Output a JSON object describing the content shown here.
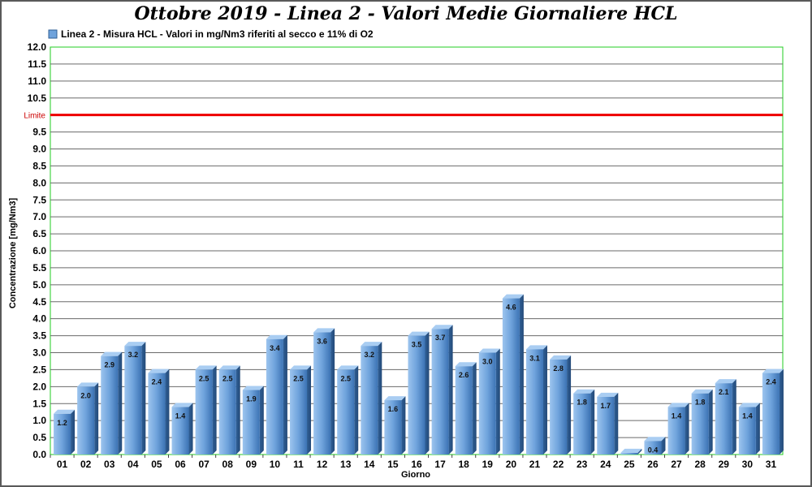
{
  "chart_data": {
    "type": "bar",
    "title": "Ottobre 2019 - Linea 2 - Valori Medie Giornaliere HCL",
    "xlabel": "Giorno",
    "ylabel": "Concentrazione [mg/Nm3]",
    "ylim": [
      0,
      12
    ],
    "ystep": 0.5,
    "grid": true,
    "legend_position": "top-left",
    "limit": {
      "label": "Limite",
      "value": 10,
      "color": "#ee0000"
    },
    "categories": [
      "01",
      "02",
      "03",
      "04",
      "05",
      "06",
      "07",
      "08",
      "09",
      "10",
      "11",
      "12",
      "13",
      "14",
      "15",
      "16",
      "17",
      "18",
      "19",
      "20",
      "21",
      "22",
      "23",
      "24",
      "25",
      "26",
      "27",
      "28",
      "29",
      "30",
      "31"
    ],
    "series": [
      {
        "name": "Linea 2 - Misura HCL - Valori in mg/Nm3 riferiti al secco e 11% di O2",
        "color": "#6fa3dc",
        "values": [
          1.2,
          2.0,
          2.9,
          3.2,
          2.4,
          1.4,
          2.5,
          2.5,
          1.9,
          3.4,
          2.5,
          3.6,
          2.5,
          3.2,
          1.6,
          3.5,
          3.7,
          2.6,
          3.0,
          4.6,
          3.1,
          2.8,
          1.8,
          1.7,
          0.05,
          0.4,
          1.4,
          1.8,
          2.1,
          1.4,
          2.4
        ],
        "labels": [
          "1.2",
          "2.0",
          "2.9",
          "3.2",
          "2.4",
          "1.4",
          "2.5",
          "2.5",
          "1.9",
          "3.4",
          "2.5",
          "3.6",
          "2.5",
          "3.2",
          "1.6",
          "3.5",
          "3.7",
          "2.6",
          "3.0",
          "4.6",
          "3.1",
          "2.8",
          "1.8",
          "1.7",
          "",
          "0.4",
          "1.4",
          "1.8",
          "2.1",
          "1.4",
          "2.4"
        ]
      }
    ]
  }
}
